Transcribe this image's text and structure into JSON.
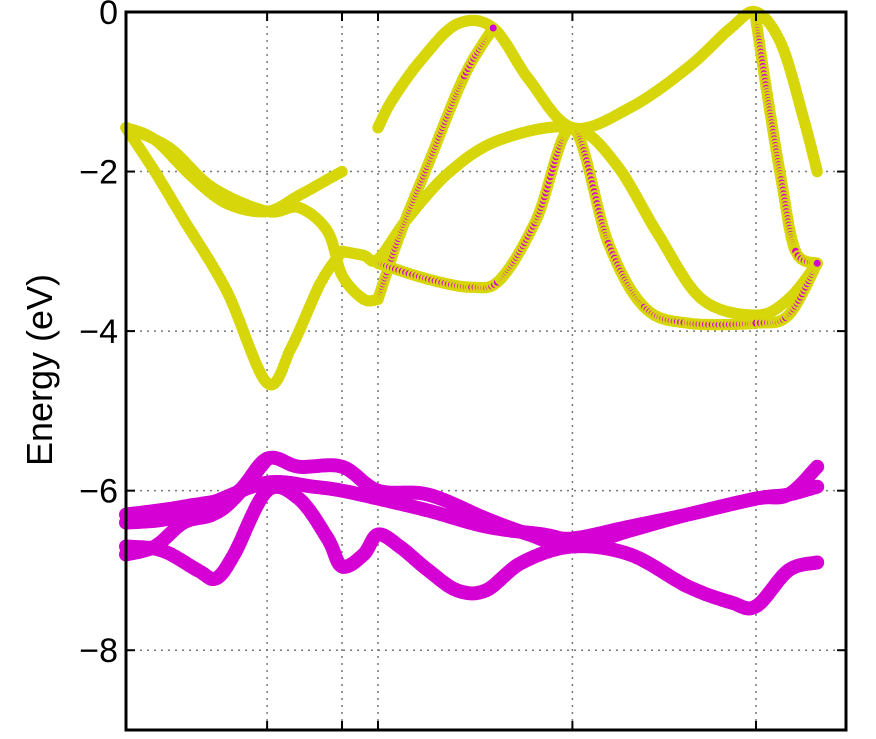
{
  "chart_data": {
    "type": "scatter",
    "title": "",
    "xlabel": "",
    "ylabel": "Energy (eV)",
    "ylim": [
      -9,
      0
    ],
    "xlim": [
      0,
      1
    ],
    "y_ticks": [
      0,
      -2,
      -4,
      -6,
      -8
    ],
    "y_tick_labels": [
      "0",
      "−2",
      "−4",
      "−6",
      "−8"
    ],
    "x_gridlines": [
      0.196,
      0.3,
      0.35,
      0.62,
      0.875
    ],
    "grid": true,
    "legend": "none",
    "colors": {
      "yellow_fill": "#d6d60a",
      "magenta": "#d400d4",
      "axis": "#000000",
      "grid": "#777777"
    },
    "series": [
      {
        "style": "yellow",
        "points": [
          [
            0,
            -1.45
          ],
          [
            0.04,
            -1.6
          ],
          [
            0.09,
            -2.05
          ],
          [
            0.14,
            -2.4
          ],
          [
            0.196,
            -2.5
          ],
          [
            0.24,
            -2.3
          ],
          [
            0.28,
            -2.1
          ],
          [
            0.3,
            -2.0
          ]
        ]
      },
      {
        "style": "yellow",
        "points": [
          [
            0.35,
            -1.45
          ],
          [
            0.37,
            -1.1
          ],
          [
            0.41,
            -0.6
          ],
          [
            0.46,
            -0.15
          ],
          [
            0.51,
            -0.2
          ],
          [
            0.56,
            -0.85
          ],
          [
            0.62,
            -1.45
          ],
          [
            0.7,
            -1.2
          ],
          [
            0.78,
            -0.7
          ],
          [
            0.84,
            -0.2
          ],
          [
            0.875,
            0
          ],
          [
            0.91,
            -0.4
          ],
          [
            0.94,
            -1.3
          ],
          [
            0.96,
            -2.0
          ]
        ]
      },
      {
        "style": "yellow",
        "points": [
          [
            0,
            -1.45
          ],
          [
            0.06,
            -1.7
          ],
          [
            0.12,
            -2.2
          ],
          [
            0.196,
            -2.5
          ],
          [
            0.24,
            -2.45
          ],
          [
            0.28,
            -2.75
          ],
          [
            0.3,
            -3.3
          ],
          [
            0.33,
            -3.6
          ],
          [
            0.35,
            -3.6
          ]
        ]
      },
      {
        "style": "yellow",
        "points": [
          [
            0.3,
            -3.0
          ],
          [
            0.33,
            -3.05
          ],
          [
            0.35,
            -3.1
          ],
          [
            0.39,
            -2.6
          ],
          [
            0.45,
            -2.0
          ],
          [
            0.52,
            -1.6
          ],
          [
            0.62,
            -1.45
          ],
          [
            0.68,
            -1.9
          ],
          [
            0.74,
            -2.8
          ],
          [
            0.8,
            -3.6
          ],
          [
            0.875,
            -3.8
          ],
          [
            0.92,
            -3.6
          ],
          [
            0.96,
            -3.15
          ]
        ]
      },
      {
        "style": "yellow",
        "points": [
          [
            0,
            -1.45
          ],
          [
            0.04,
            -2.0
          ],
          [
            0.08,
            -2.6
          ],
          [
            0.14,
            -3.5
          ],
          [
            0.196,
            -4.65
          ],
          [
            0.23,
            -4.2
          ],
          [
            0.27,
            -3.4
          ],
          [
            0.3,
            -3.0
          ]
        ]
      },
      {
        "style": "magenta_outline",
        "points": [
          [
            0.35,
            -3.6
          ],
          [
            0.38,
            -2.8
          ],
          [
            0.42,
            -1.9
          ],
          [
            0.47,
            -0.8
          ],
          [
            0.51,
            -0.2
          ]
        ]
      },
      {
        "style": "magenta_outline",
        "points": [
          [
            0.35,
            -3.15
          ],
          [
            0.42,
            -3.35
          ],
          [
            0.48,
            -3.45
          ],
          [
            0.52,
            -3.35
          ],
          [
            0.57,
            -2.6
          ],
          [
            0.62,
            -1.45
          ],
          [
            0.67,
            -2.9
          ],
          [
            0.72,
            -3.7
          ],
          [
            0.78,
            -3.9
          ],
          [
            0.875,
            -3.9
          ],
          [
            0.92,
            -3.8
          ],
          [
            0.96,
            -3.15
          ]
        ]
      },
      {
        "style": "magenta_outline",
        "points": [
          [
            0.875,
            -0.1
          ],
          [
            0.89,
            -1.0
          ],
          [
            0.91,
            -2.1
          ],
          [
            0.93,
            -3.0
          ],
          [
            0.96,
            -3.15
          ]
        ]
      },
      {
        "style": "magenta",
        "points": [
          [
            0,
            -6.3
          ],
          [
            0.08,
            -6.2
          ],
          [
            0.15,
            -6.05
          ],
          [
            0.196,
            -5.6
          ],
          [
            0.24,
            -5.7
          ],
          [
            0.3,
            -5.7
          ],
          [
            0.35,
            -6.0
          ],
          [
            0.42,
            -6.05
          ],
          [
            0.5,
            -6.35
          ],
          [
            0.56,
            -6.55
          ],
          [
            0.62,
            -6.7
          ],
          [
            0.7,
            -6.5
          ],
          [
            0.78,
            -6.3
          ],
          [
            0.875,
            -6.1
          ],
          [
            0.92,
            -6.05
          ],
          [
            0.96,
            -5.7
          ]
        ]
      },
      {
        "style": "magenta",
        "points": [
          [
            0,
            -6.4
          ],
          [
            0.06,
            -6.35
          ],
          [
            0.12,
            -6.15
          ],
          [
            0.196,
            -5.9
          ],
          [
            0.26,
            -5.95
          ],
          [
            0.3,
            -6.0
          ],
          [
            0.35,
            -6.1
          ],
          [
            0.42,
            -6.25
          ],
          [
            0.5,
            -6.45
          ],
          [
            0.58,
            -6.55
          ],
          [
            0.62,
            -6.6
          ],
          [
            0.7,
            -6.45
          ],
          [
            0.78,
            -6.3
          ],
          [
            0.875,
            -6.1
          ],
          [
            0.92,
            -6.05
          ],
          [
            0.96,
            -5.95
          ]
        ]
      },
      {
        "style": "magenta",
        "points": [
          [
            0,
            -6.8
          ],
          [
            0.04,
            -6.7
          ],
          [
            0.08,
            -6.4
          ],
          [
            0.12,
            -6.3
          ],
          [
            0.15,
            -6.1
          ],
          [
            0.196,
            -5.6
          ]
        ]
      },
      {
        "style": "magenta",
        "points": [
          [
            0,
            -6.7
          ],
          [
            0.05,
            -6.75
          ],
          [
            0.1,
            -7.0
          ],
          [
            0.125,
            -7.1
          ],
          [
            0.15,
            -6.8
          ],
          [
            0.196,
            -6.0
          ],
          [
            0.24,
            -6.1
          ],
          [
            0.28,
            -6.6
          ],
          [
            0.3,
            -6.95
          ],
          [
            0.33,
            -6.8
          ],
          [
            0.35,
            -6.55
          ],
          [
            0.38,
            -6.7
          ],
          [
            0.42,
            -7.0
          ],
          [
            0.46,
            -7.25
          ],
          [
            0.5,
            -7.25
          ],
          [
            0.55,
            -6.9
          ],
          [
            0.62,
            -6.7
          ],
          [
            0.7,
            -6.8
          ],
          [
            0.78,
            -7.2
          ],
          [
            0.84,
            -7.4
          ],
          [
            0.875,
            -7.45
          ],
          [
            0.92,
            -7.0
          ],
          [
            0.96,
            -6.9
          ]
        ]
      }
    ]
  }
}
